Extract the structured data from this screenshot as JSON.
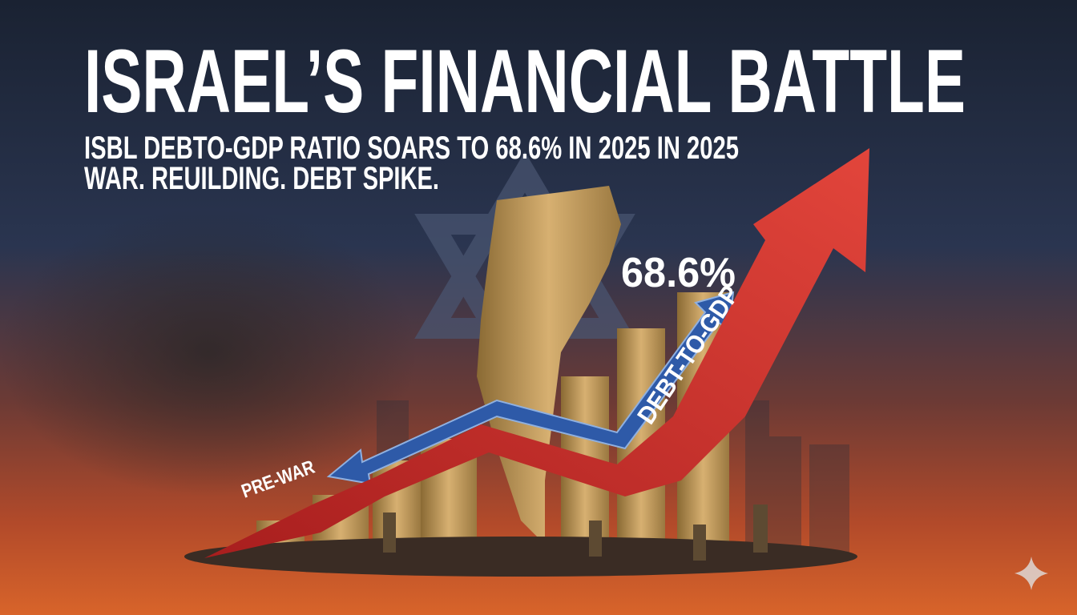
{
  "header": {
    "title": "ISRAEL’S FINANCIAL BATTLE",
    "subtitle_lines": [
      "ISBL  DEBTO-GDP RATIO SOARS TO 68.6% IN 2025 IN 2025",
      "WAR. REUILDING. DEBT SPIKE."
    ]
  },
  "illustration": {
    "value_label": "68.6%",
    "start_label": "PRE-WAR",
    "arrow_label": "DEBT-TO-GDP"
  }
}
